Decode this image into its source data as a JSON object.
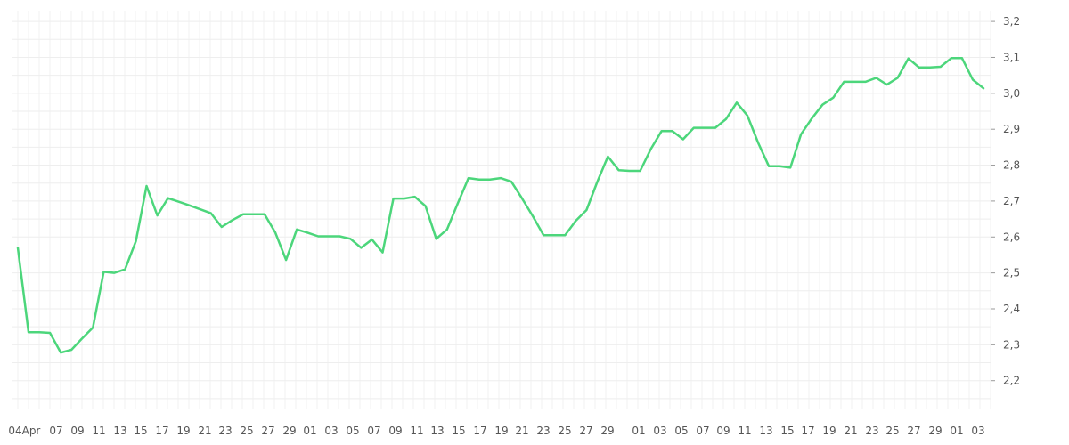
{
  "chart_data": {
    "type": "line",
    "title": "",
    "xlabel": "",
    "ylabel": "",
    "ylim": [
      2.12,
      3.23
    ],
    "grid": true,
    "y_ticks": [
      "2,2",
      "2,3",
      "2,4",
      "2,5",
      "2,6",
      "2,7",
      "2,8",
      "2,9",
      "3,0",
      "3,1",
      "3,2"
    ],
    "x_ticks": [
      "04",
      "Apr",
      "07",
      "09",
      "11",
      "13",
      "15",
      "17",
      "19",
      "21",
      "23",
      "25",
      "27",
      "29",
      "01",
      "03",
      "05",
      "07",
      "09",
      "11",
      "13",
      "15",
      "17",
      "19",
      "21",
      "23",
      "25",
      "27",
      "29",
      "01",
      "03",
      "05",
      "07",
      "09",
      "11",
      "13",
      "15",
      "17",
      "19",
      "21",
      "23",
      "25",
      "27",
      "29",
      "01",
      "03"
    ],
    "series": [
      {
        "color": "#4cd67b",
        "values": [
          2.57,
          2.335,
          2.335,
          2.333,
          2.278,
          2.286,
          2.318,
          2.348,
          2.503,
          2.5,
          2.51,
          2.588,
          2.742,
          2.66,
          2.708,
          2.698,
          2.688,
          2.677,
          2.666,
          2.628,
          2.647,
          2.663,
          2.663,
          2.663,
          2.612,
          2.536,
          2.621,
          2.612,
          2.602,
          2.602,
          2.602,
          2.595,
          2.57,
          2.593,
          2.557,
          2.707,
          2.707,
          2.712,
          2.686,
          2.595,
          2.621,
          2.693,
          2.764,
          2.76,
          2.76,
          2.764,
          2.754,
          2.707,
          2.658,
          2.605,
          2.605,
          2.605,
          2.645,
          2.675,
          2.753,
          2.824,
          2.786,
          2.784,
          2.784,
          2.845,
          2.895,
          2.895,
          2.872,
          2.904,
          2.904,
          2.904,
          2.928,
          2.974,
          2.938,
          2.862,
          2.797,
          2.797,
          2.793,
          2.886,
          2.93,
          2.968,
          2.988,
          3.032,
          3.032,
          3.032,
          3.043,
          3.024,
          3.043,
          3.097,
          3.072,
          3.072,
          3.074,
          3.098,
          3.098,
          3.038,
          3.014
        ]
      }
    ]
  }
}
